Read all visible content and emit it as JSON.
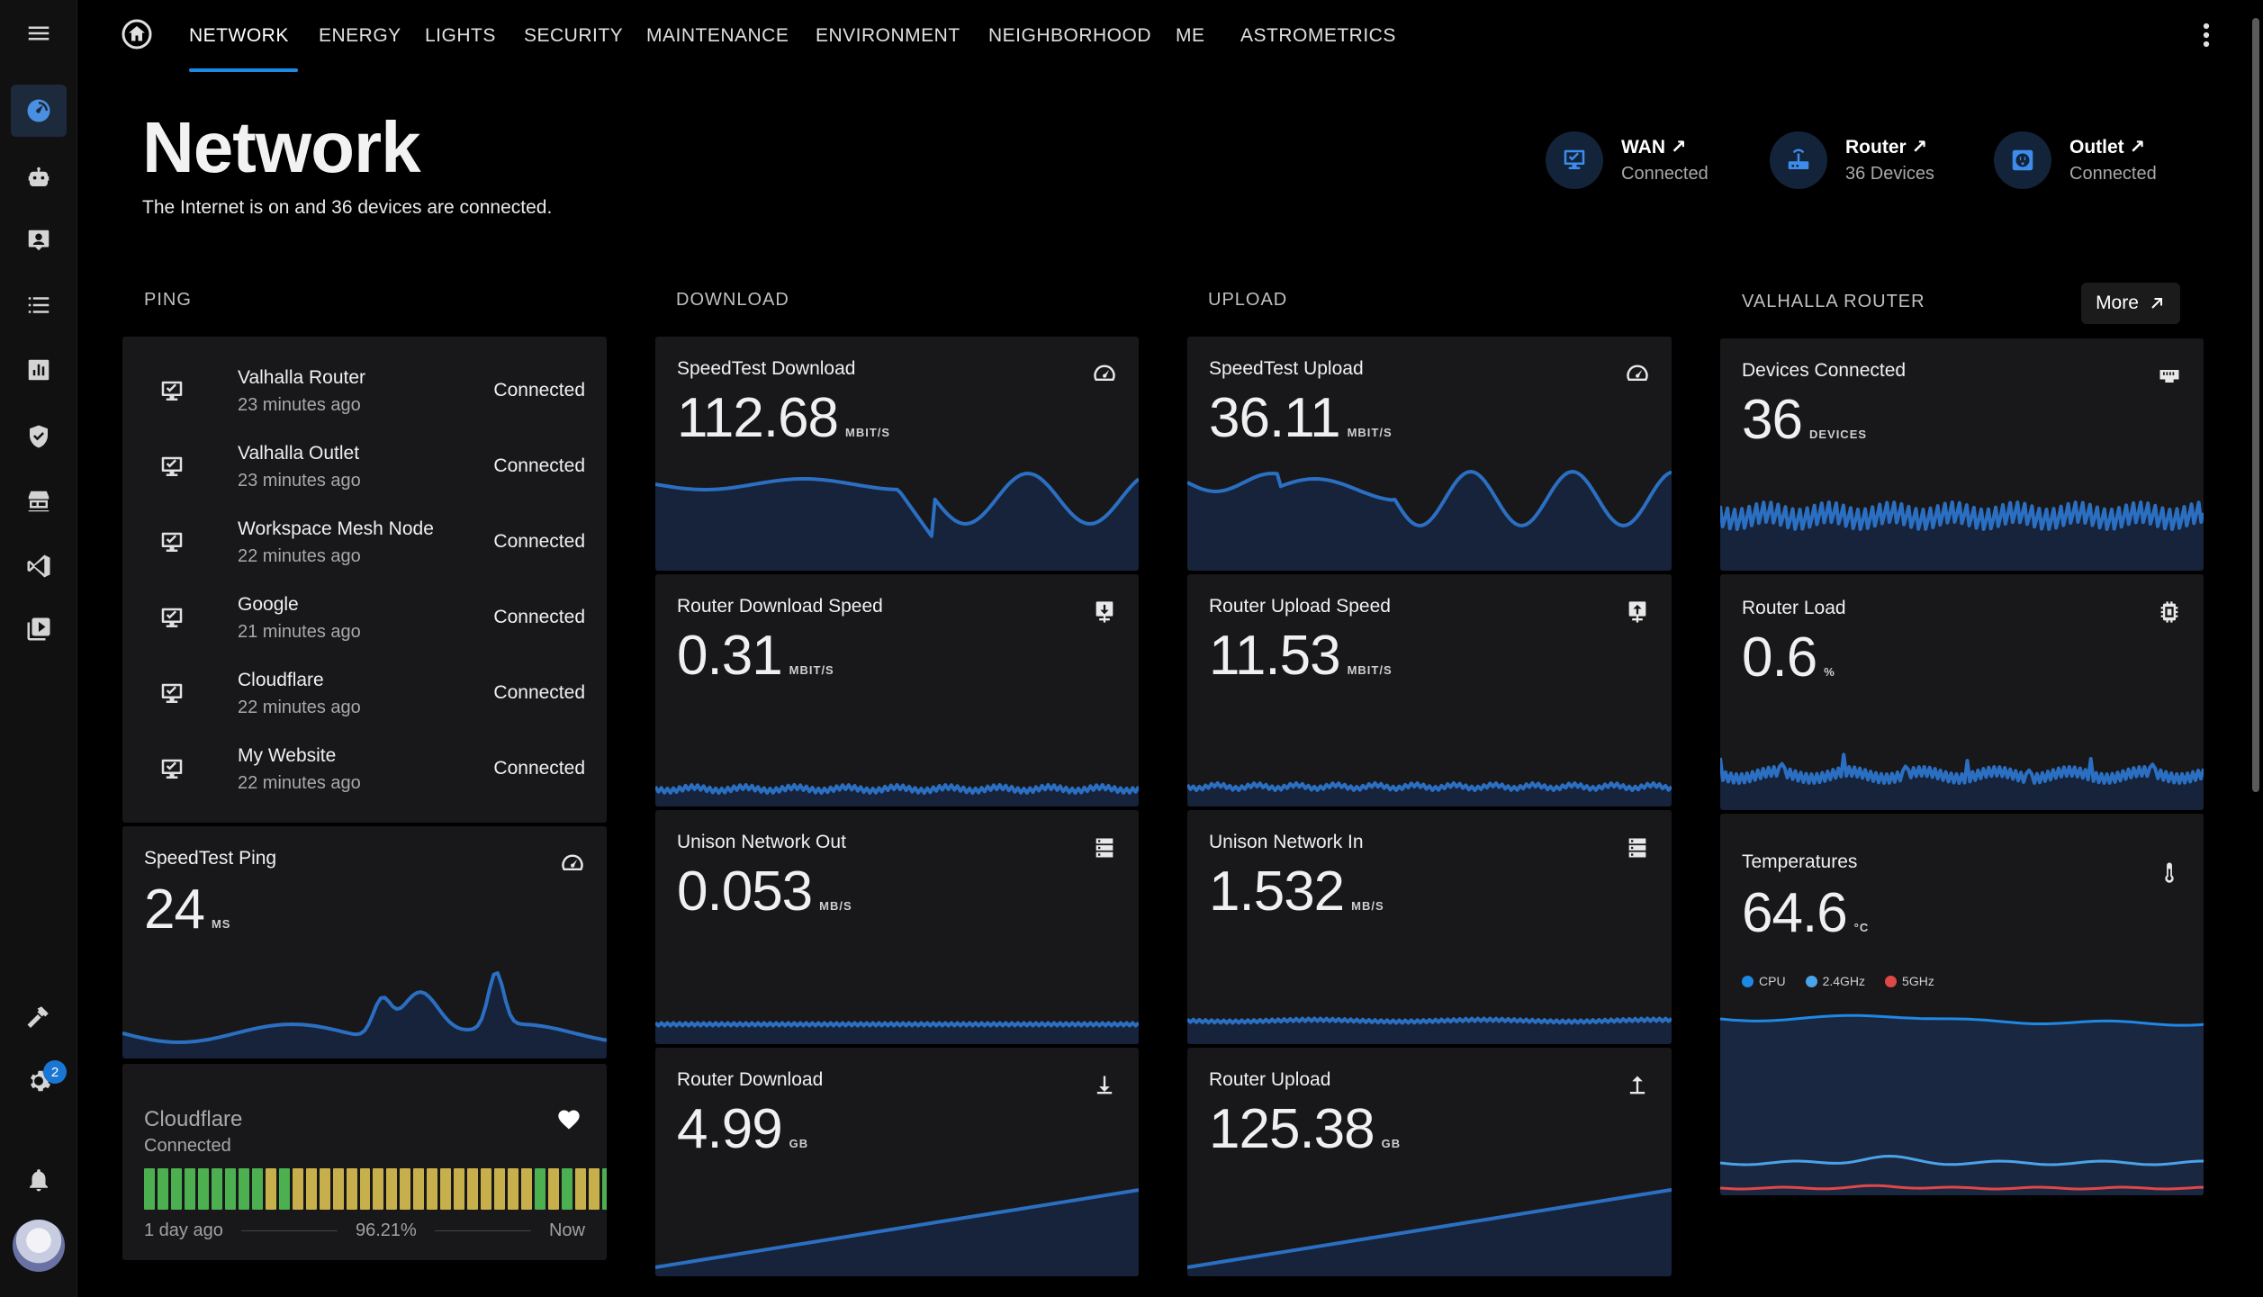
{
  "nav": {
    "tabs": [
      "NETWORK",
      "ENERGY",
      "LIGHTS",
      "SECURITY",
      "MAINTENANCE",
      "ENVIRONMENT",
      "NEIGHBORHOOD",
      "ME",
      "ASTROMETRICS"
    ],
    "active_tab": "NETWORK"
  },
  "sidebar": {
    "items": [
      "menu-icon",
      "dashboard-icon",
      "robot-icon",
      "account-box-icon",
      "list-icon",
      "chart-icon",
      "shield-icon",
      "hacs-icon",
      "vscode-icon",
      "media-icon",
      "hammer-icon",
      "settings-icon",
      "bell-icon",
      "avatar"
    ],
    "settings_badge": "2"
  },
  "header": {
    "title": "Network",
    "subtitle": "The Internet is on and 36 devices are connected.",
    "badges": [
      {
        "name": "WAN",
        "state": "Connected",
        "icon": "monitor-check-icon"
      },
      {
        "name": "Router",
        "state": "36 Devices",
        "icon": "router-icon"
      },
      {
        "name": "Outlet",
        "state": "Connected",
        "icon": "outlet-icon"
      }
    ],
    "link_arrow": "↗"
  },
  "sections": {
    "ping": "PING",
    "download": "DOWNLOAD",
    "upload": "UPLOAD",
    "router": "VALHALLA ROUTER",
    "more_label": "More"
  },
  "ping_list": [
    {
      "name": "Valhalla Router",
      "time": "23 minutes ago",
      "state": "Connected"
    },
    {
      "name": "Valhalla Outlet",
      "time": "23 minutes ago",
      "state": "Connected"
    },
    {
      "name": "Workspace Mesh Node",
      "time": "22 minutes ago",
      "state": "Connected"
    },
    {
      "name": "Google",
      "time": "21 minutes ago",
      "state": "Connected"
    },
    {
      "name": "Cloudflare",
      "time": "22 minutes ago",
      "state": "Connected"
    },
    {
      "name": "My Website",
      "time": "22 minutes ago",
      "state": "Connected"
    }
  ],
  "cards": {
    "speedtest_ping": {
      "title": "SpeedTest Ping",
      "value": "24",
      "unit": "MS",
      "icon": "speedometer-icon"
    },
    "speedtest_download": {
      "title": "SpeedTest Download",
      "value": "112.68",
      "unit": "MBIT/S",
      "icon": "speedometer-icon"
    },
    "router_download_speed": {
      "title": "Router Download Speed",
      "value": "0.31",
      "unit": "MBIT/S",
      "icon": "download-network-icon"
    },
    "unison_out": {
      "title": "Unison Network Out",
      "value": "0.053",
      "unit": "MB/S",
      "icon": "server-icon"
    },
    "router_download": {
      "title": "Router Download",
      "value": "4.99",
      "unit": "GB",
      "icon": "download-icon"
    },
    "speedtest_upload": {
      "title": "SpeedTest Upload",
      "value": "36.11",
      "unit": "MBIT/S",
      "icon": "speedometer-icon"
    },
    "router_upload_speed": {
      "title": "Router Upload Speed",
      "value": "11.53",
      "unit": "MBIT/S",
      "icon": "upload-network-icon"
    },
    "unison_in": {
      "title": "Unison Network In",
      "value": "1.532",
      "unit": "MB/S",
      "icon": "server-icon"
    },
    "router_upload": {
      "title": "Router Upload",
      "value": "125.38",
      "unit": "GB",
      "icon": "upload-icon"
    },
    "devices_connected": {
      "title": "Devices Connected",
      "value": "36",
      "unit": "DEVICES",
      "icon": "ethernet-icon"
    },
    "router_load": {
      "title": "Router Load",
      "value": "0.6",
      "unit": "%",
      "icon": "cpu-icon"
    },
    "temperatures": {
      "title": "Temperatures",
      "value": "64.6",
      "unit": "°C",
      "icon": "thermometer-icon",
      "legend": [
        {
          "label": "CPU",
          "color": "#1e88e5"
        },
        {
          "label": "2.4GHz",
          "color": "#4aa3e8"
        },
        {
          "label": "5GHz",
          "color": "#e04848"
        }
      ]
    }
  },
  "uptime": {
    "title": "Cloudflare",
    "state": "Connected",
    "start_label": "1 day ago",
    "percent": "96.21%",
    "end_label": "Now",
    "bars": [
      "g",
      "g",
      "g",
      "g",
      "g",
      "g",
      "g",
      "g",
      "g",
      "y",
      "g",
      "y",
      "y",
      "y",
      "y",
      "y",
      "y",
      "y",
      "y",
      "y",
      "y",
      "y",
      "y",
      "y",
      "y",
      "y",
      "y",
      "y",
      "y",
      "g",
      "y",
      "g",
      "y",
      "y",
      "g",
      "g"
    ],
    "icon": "heart-icon",
    "colors": {
      "g": "#4cb050",
      "y": "#c7b04b"
    }
  },
  "colors": {
    "accent": "#1e88e5",
    "line": "#2b6fc2",
    "fill": "#16233a"
  }
}
